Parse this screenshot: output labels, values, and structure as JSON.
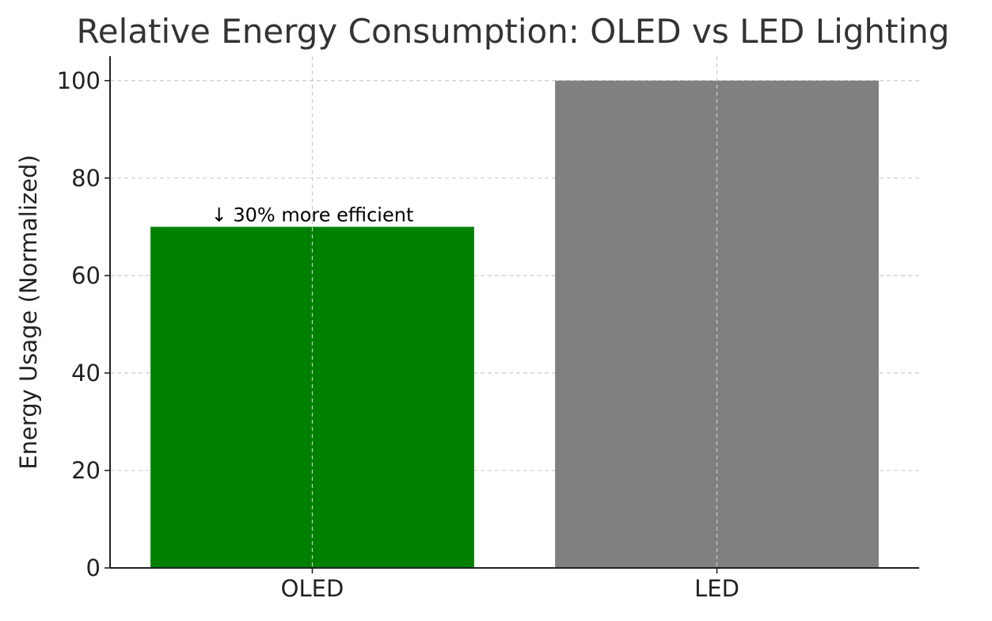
{
  "chart_data": {
    "type": "bar",
    "title": "Relative Energy Consumption: OLED vs LED Lighting",
    "xlabel": "",
    "ylabel": "Energy Usage (Normalized)",
    "categories": [
      "OLED",
      "LED"
    ],
    "values": [
      70,
      100
    ],
    "ylim": [
      0,
      105
    ],
    "yticks": [
      0,
      20,
      40,
      60,
      80,
      100
    ],
    "grid": true,
    "colors": [
      "#008000",
      "#808080"
    ],
    "annotations": [
      {
        "category": "OLED",
        "y": 70,
        "text": "↓ 30% more efficient"
      }
    ]
  }
}
